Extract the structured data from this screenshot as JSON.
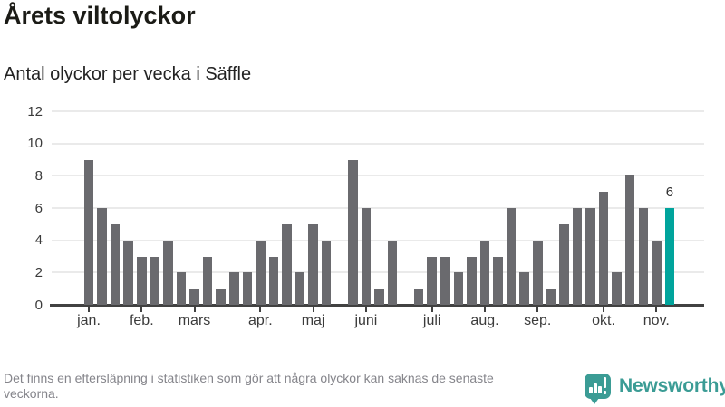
{
  "header": {
    "title": "Årets viltolyckor",
    "subtitle": "Antal olyckor per vecka i Säffle"
  },
  "chart_data": {
    "type": "bar",
    "title": "Årets viltolyckor",
    "subtitle": "Antal olyckor per vecka i Säffle",
    "x_unit": "vecka",
    "values": [
      9,
      6,
      5,
      4,
      3,
      3,
      4,
      2,
      1,
      3,
      1,
      2,
      2,
      4,
      3,
      5,
      2,
      5,
      4,
      0,
      9,
      6,
      1,
      4,
      0,
      1,
      3,
      3,
      2,
      3,
      4,
      3,
      6,
      2,
      4,
      1,
      5,
      6,
      6,
      7,
      2,
      8,
      6,
      4,
      6
    ],
    "highlight_week": 45,
    "annotation": {
      "text": "6",
      "week": 45,
      "value": 6
    },
    "yticks": [
      0,
      2,
      4,
      6,
      8,
      10,
      12
    ],
    "ylim": [
      0,
      12
    ],
    "months": [
      {
        "label": "jan.",
        "week": 1
      },
      {
        "label": "feb.",
        "week": 5
      },
      {
        "label": "mars",
        "week": 9
      },
      {
        "label": "apr.",
        "week": 14
      },
      {
        "label": "maj",
        "week": 18
      },
      {
        "label": "juni",
        "week": 22
      },
      {
        "label": "juli",
        "week": 27
      },
      {
        "label": "aug.",
        "week": 31
      },
      {
        "label": "sep.",
        "week": 35
      },
      {
        "label": "okt.",
        "week": 40
      },
      {
        "label": "nov.",
        "week": 44
      }
    ],
    "grid": true,
    "legend": false,
    "colors": {
      "bar": "#6a6a6e",
      "highlight": "#00a49c",
      "gridline": "#eaeaea",
      "axis": "#414141",
      "axis_text": "#3b3b3b"
    }
  },
  "footer": {
    "note": "Det finns en eftersläpning i statistiken som gör att några olyckor kan saknas de senaste veckorna.",
    "brand": "Newsworthy",
    "brand_color": "#3b9c95"
  }
}
